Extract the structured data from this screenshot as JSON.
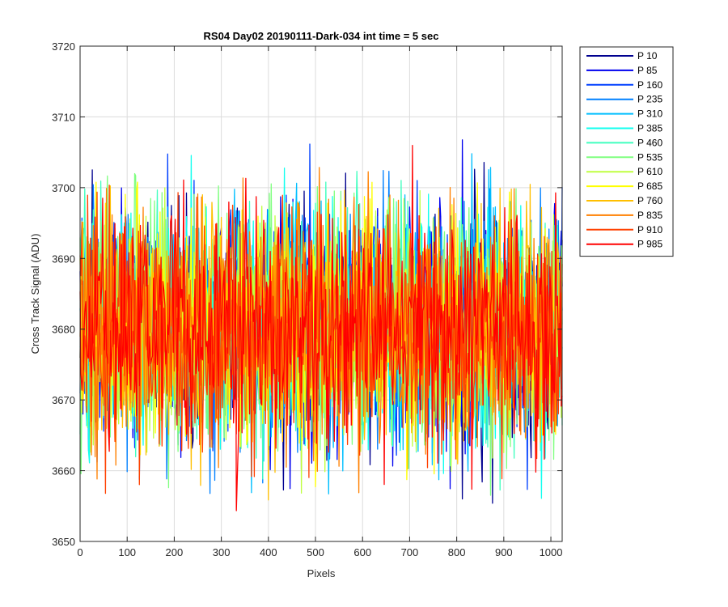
{
  "chart_data": {
    "type": "line",
    "title": "RS04 Day02 20190111-Dark-034 int time = 5 sec",
    "xlabel": "Pixels",
    "ylabel": "Cross Track Signal (ADU)",
    "xlim": [
      0,
      1024
    ],
    "ylim": [
      3650,
      3720
    ],
    "x_ticks": [
      0,
      100,
      200,
      300,
      400,
      500,
      600,
      700,
      800,
      900,
      1000
    ],
    "y_ticks": [
      3650,
      3660,
      3670,
      3680,
      3690,
      3700,
      3710,
      3720
    ],
    "grid": true,
    "legend_position": "outside-top-right",
    "noise_summary": {
      "mean": 3680,
      "typical_min": 3662,
      "typical_max": 3700,
      "extreme_min": 3653,
      "extreme_max": 3712
    },
    "series": [
      {
        "name": "P 10",
        "color": "#00008f"
      },
      {
        "name": "P 85",
        "color": "#0000ef"
      },
      {
        "name": "P 160",
        "color": "#0040ff"
      },
      {
        "name": "P 235",
        "color": "#0080ff"
      },
      {
        "name": "P 310",
        "color": "#00bfff"
      },
      {
        "name": "P 385",
        "color": "#10ffef"
      },
      {
        "name": "P 460",
        "color": "#40ffbf"
      },
      {
        "name": "P 535",
        "color": "#80ff80"
      },
      {
        "name": "P 610",
        "color": "#bfff40"
      },
      {
        "name": "P 685",
        "color": "#ffff00"
      },
      {
        "name": "P 760",
        "color": "#ffbf00"
      },
      {
        "name": "P 835",
        "color": "#ff8000"
      },
      {
        "name": "P 910",
        "color": "#ff4000"
      },
      {
        "name": "P 985",
        "color": "#ff0000"
      }
    ]
  }
}
